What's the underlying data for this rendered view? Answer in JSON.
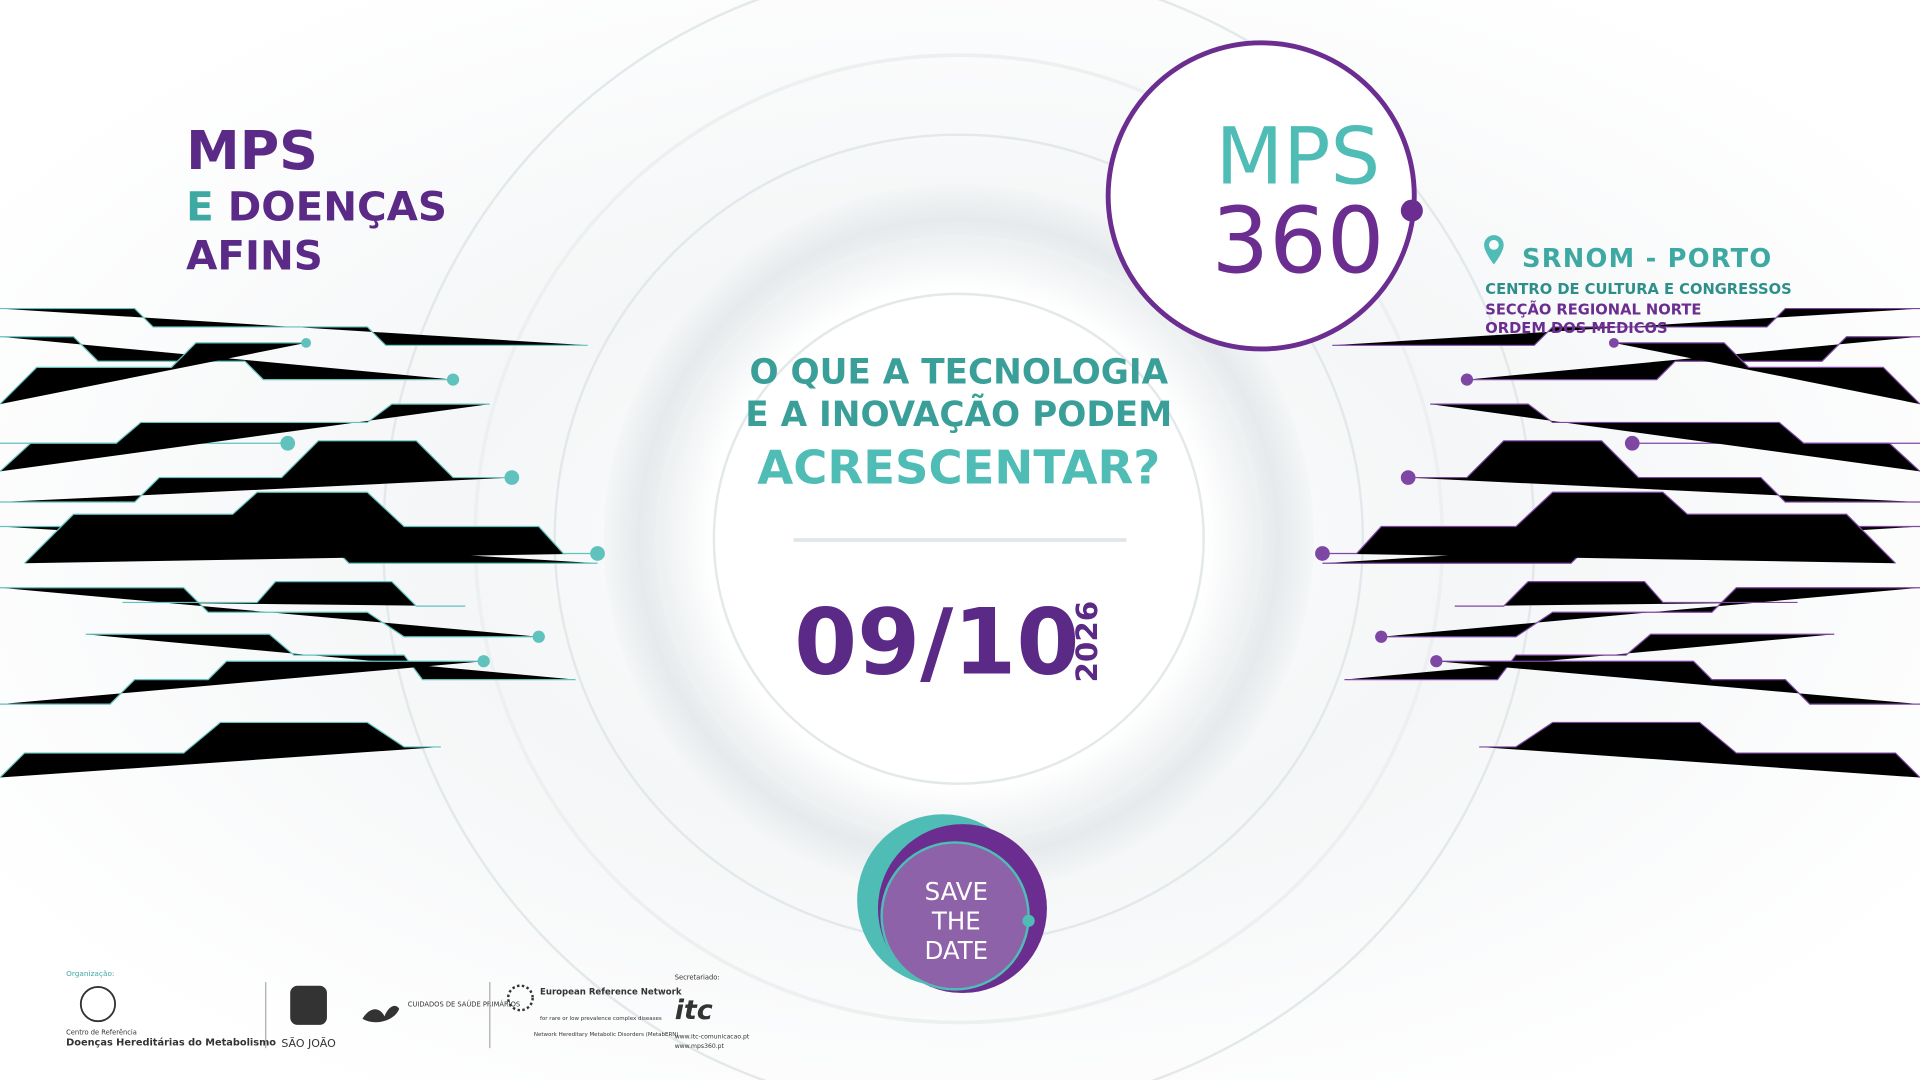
{
  "event_title": {
    "line1": "MPS",
    "line2_teal": "E",
    "line2_purple": "DOENÇAS",
    "line3": "AFINS"
  },
  "logo": {
    "top": "MPS",
    "bottom": "360"
  },
  "location": {
    "city": "SRNOM - PORTO",
    "venue": "CENTRO DE CULTURA E CONGRESSOS",
    "org_line1": "SECÇÃO REGIONAL NORTE",
    "org_line2": "ORDEM DOS MEDICOS"
  },
  "question": {
    "line1": "O QUE A TECNOLOGIA",
    "line2": "E A INOVAÇÃO PODEM",
    "line3": "ACRESCENTAR?"
  },
  "date": {
    "day_month": "09/10",
    "year": "2026"
  },
  "save_the_date": {
    "line1": "SAVE",
    "line2": "THE",
    "line3": "DATE"
  },
  "footer": {
    "organization_label": "Organização:",
    "org_ref": "Centro de Referência",
    "org_name": "Doenças Hereditárias do Metabolismo",
    "sao_joao": "SÃO JOÃO",
    "primary_care": "CUIDADOS DE SAÚDE PRIMÁRIOS",
    "ern_title": "European Reference Network",
    "ern_sub": "for rare or low prevalence complex diseases",
    "ern_network": "Network Hereditary Metabolic Disorders (MetabERN)",
    "secretariat_label": "Secretariado:",
    "secretariat_url1": "www.itc-comunicacao.pt",
    "secretariat_url2": "www.mps360.pt"
  }
}
